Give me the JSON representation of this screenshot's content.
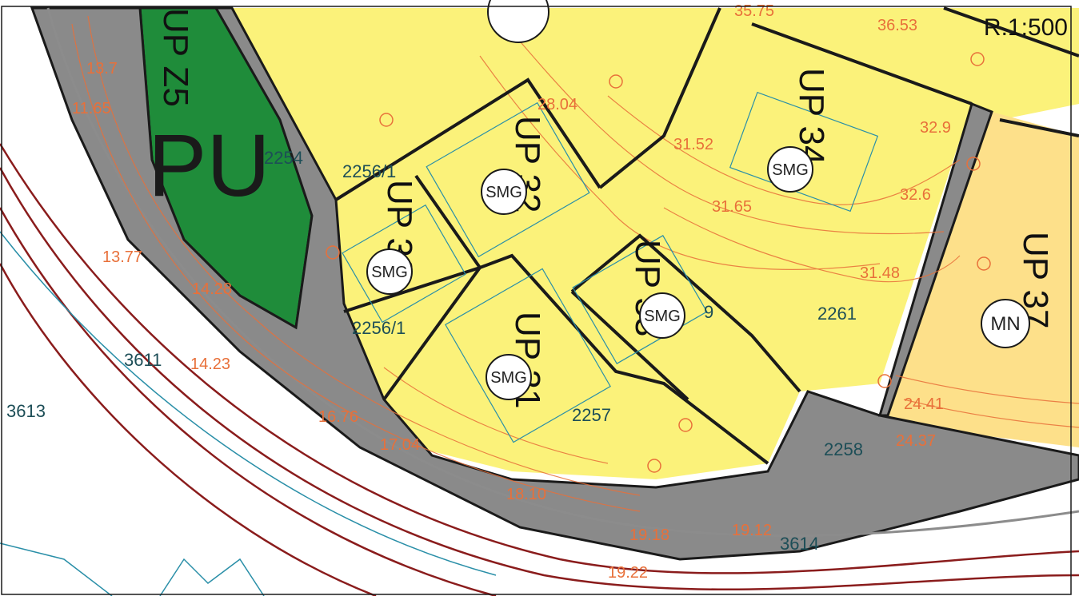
{
  "scale": "R.1:500",
  "zone_labels": {
    "pu": "PU",
    "up_z5": "UP Z5",
    "up30": "UP 30",
    "up31": "UP 31",
    "up32": "UP 32",
    "up33": "UP 33",
    "up34": "UP 34",
    "up37": "UP 37"
  },
  "use_codes": {
    "smg": "SMG",
    "mn": "MN"
  },
  "parcel_numbers": {
    "p2254": "2254",
    "p2256_1a": "2256/1",
    "p2256_1b": "2256/1",
    "p2257": "2257",
    "p2258": "2258",
    "p2261": "2261",
    "p3611": "3611",
    "p3613": "3613",
    "p3614": "3614",
    "p9": "9"
  },
  "elevations": {
    "e1": "13.7",
    "e2": "11.65",
    "e3": "13.77",
    "e4": "14.28",
    "e5": "14.23",
    "e6": "16.76",
    "e7": "17.04",
    "e8": "18.10",
    "e9": "19.18",
    "e10": "19.12",
    "e11": "19.22",
    "e12": "28.04",
    "e13": "31.52",
    "e14": "31.65",
    "e15": "31.48",
    "e16": "32.9",
    "e17": "32.6",
    "e18": "36.53",
    "e19": "24.41",
    "e20": "24.37",
    "e21": "35.75"
  },
  "colors": {
    "building_zone": "#fbf27a",
    "building_zone_orange": "#fde08a",
    "green_zone": "#1f8c3a",
    "road": "#8a8a8a",
    "contour": "#e8703a",
    "boundary": "#1a1a1a",
    "water_line": "#2a8fa8"
  }
}
